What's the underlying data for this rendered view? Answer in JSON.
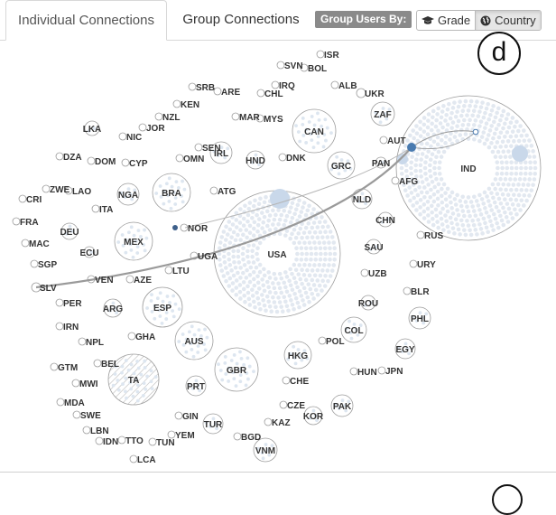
{
  "tabs": {
    "individual": "Individual Connections",
    "group": "Group Connections"
  },
  "group_by": {
    "label": "Group Users By:",
    "grade": "Grade",
    "country": "Country",
    "selected": "Country"
  },
  "icons": {
    "grade": "graduation-cap-icon",
    "country": "globe-icon"
  },
  "panel_label": "d",
  "colors": {
    "bubble_fill": "#dde6f0",
    "bubble_stroke": "#b8b8b8",
    "node": "#4a7bb0",
    "link": "#9a9a9a"
  },
  "countries": [
    "ISR",
    "SVN",
    "BOL",
    "SRB",
    "ARE",
    "IRQ",
    "CHL",
    "ALB",
    "UKR",
    "KEN",
    "NZL",
    "MAR",
    "MYS",
    "ZAF",
    "LKA",
    "JOR",
    "NIC",
    "CAN",
    "AUT",
    "SEN",
    "IRL",
    "DZA",
    "DOM",
    "CYP",
    "OMN",
    "HND",
    "DNK",
    "GRC",
    "PAN",
    "IND",
    "ZWE",
    "LAO",
    "CRI",
    "NGA",
    "BRA",
    "ATG",
    "AFG",
    "NLD",
    "ITA",
    "FRA",
    "DEU",
    "NOR",
    "CHN",
    "MEX",
    "USA",
    "RUS",
    "MAC",
    "ECU",
    "UGA",
    "SAU",
    "SGP",
    "LTU",
    "URY",
    "SLV",
    "VEN",
    "AZE",
    "UZB",
    "BLR",
    "PER",
    "ARG",
    "ESP",
    "ROU",
    "PHL",
    "IRN",
    "GHA",
    "COL",
    "NPL",
    "POL",
    "EGY",
    "AUS",
    "GTM",
    "BEL",
    "HKG",
    "GBR",
    "HUN",
    "JPN",
    "MWI",
    "TA",
    "CHE",
    "PRT",
    "MDA",
    "CZE",
    "PAK",
    "SWE",
    "GIN",
    "KOR",
    "KAZ",
    "TUR",
    "LBN",
    "YEM",
    "IDN",
    "TTO",
    "TUN",
    "BGD",
    "VNM",
    "LCA"
  ]
}
